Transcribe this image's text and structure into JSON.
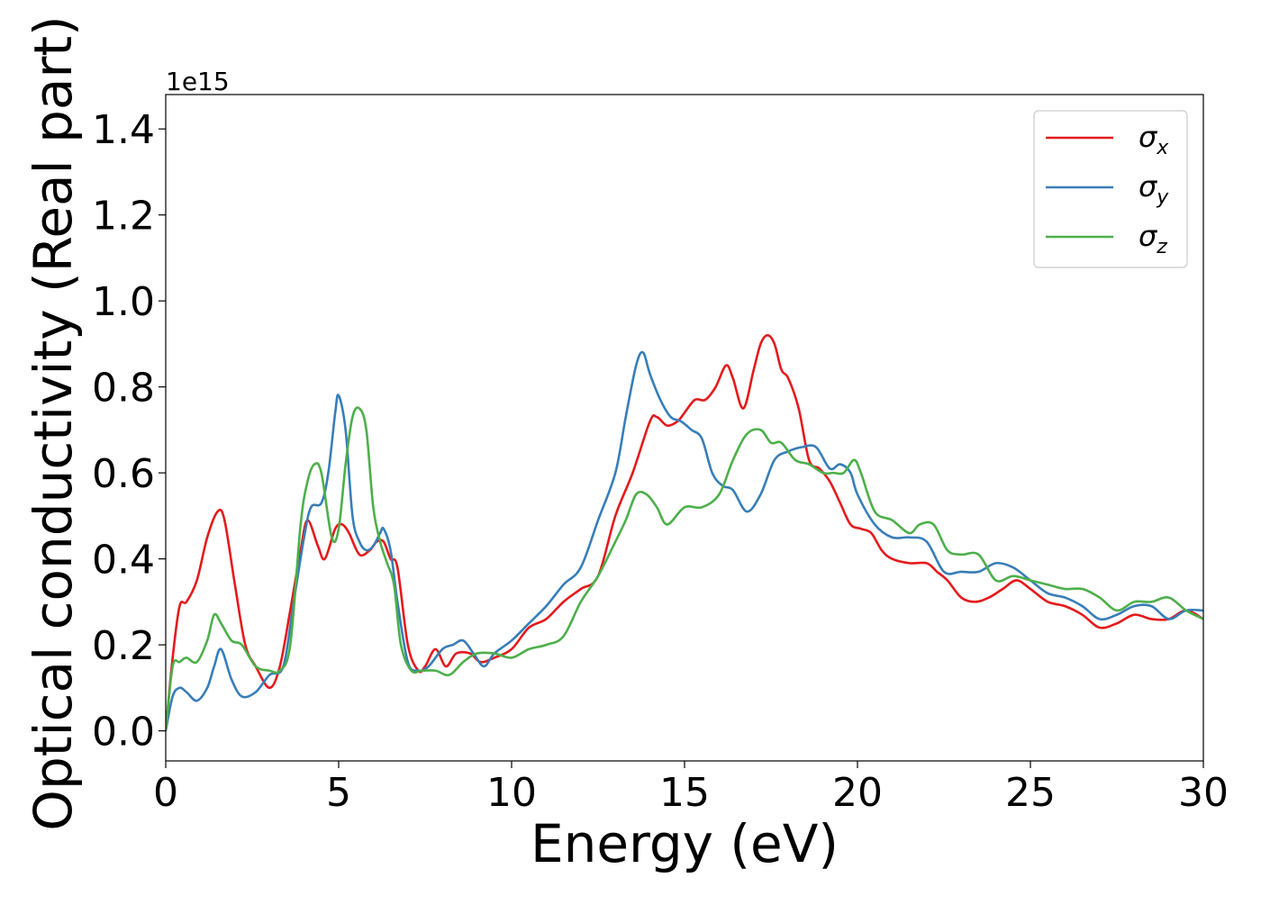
{
  "chart_data": {
    "type": "line",
    "title": "",
    "xlabel": "Energy (eV)",
    "ylabel": "Optical conductivity (Real part)",
    "y_offset_label": "1e15",
    "xlim": [
      0,
      30
    ],
    "ylim": [
      -0.07,
      1.48
    ],
    "xticks": [
      0,
      5,
      10,
      15,
      20,
      25,
      30
    ],
    "xtick_labels": [
      "0",
      "5",
      "10",
      "15",
      "20",
      "25",
      "30"
    ],
    "yticks": [
      0.0,
      0.2,
      0.4,
      0.6,
      0.8,
      1.0,
      1.2,
      1.4
    ],
    "ytick_labels": [
      "0.0",
      "0.2",
      "0.4",
      "0.6",
      "0.8",
      "1.0",
      "1.2",
      "1.4"
    ],
    "grid": false,
    "legend_position": "top-right",
    "series": [
      {
        "name": "σx",
        "legend_symbol": "σ",
        "legend_subscript": "x",
        "color": "#e41a1c",
        "x": [
          0,
          0.2,
          0.4,
          0.6,
          0.9,
          1.2,
          1.5,
          1.7,
          2.0,
          2.3,
          2.6,
          3.0,
          3.3,
          3.6,
          3.9,
          4.1,
          4.4,
          4.6,
          4.9,
          5.1,
          5.3,
          5.6,
          5.9,
          6.1,
          6.3,
          6.5,
          6.7,
          7.0,
          7.3,
          7.5,
          7.8,
          8.1,
          8.4,
          8.8,
          9.1,
          9.5,
          10.0,
          10.5,
          11.0,
          11.5,
          12.0,
          12.5,
          13.0,
          13.5,
          14.0,
          14.2,
          14.5,
          14.8,
          15.0,
          15.3,
          15.6,
          15.9,
          16.2,
          16.4,
          16.7,
          17.0,
          17.2,
          17.4,
          17.6,
          17.8,
          18.0,
          18.3,
          18.6,
          18.9,
          19.2,
          19.5,
          19.8,
          20.1,
          20.4,
          20.7,
          21.0,
          21.5,
          22.0,
          22.3,
          22.6,
          23.0,
          23.4,
          23.8,
          24.2,
          24.6,
          25.0,
          25.5,
          26.0,
          26.5,
          27.0,
          27.5,
          28.0,
          28.5,
          29.0,
          29.5,
          30.0
        ],
        "values": [
          0.0,
          0.17,
          0.29,
          0.3,
          0.35,
          0.45,
          0.51,
          0.49,
          0.34,
          0.2,
          0.15,
          0.1,
          0.15,
          0.28,
          0.42,
          0.49,
          0.43,
          0.4,
          0.47,
          0.48,
          0.46,
          0.41,
          0.42,
          0.44,
          0.44,
          0.4,
          0.38,
          0.2,
          0.14,
          0.15,
          0.19,
          0.15,
          0.18,
          0.18,
          0.16,
          0.17,
          0.19,
          0.24,
          0.26,
          0.3,
          0.33,
          0.36,
          0.5,
          0.6,
          0.72,
          0.73,
          0.71,
          0.72,
          0.74,
          0.77,
          0.77,
          0.8,
          0.85,
          0.82,
          0.75,
          0.84,
          0.9,
          0.92,
          0.9,
          0.84,
          0.82,
          0.75,
          0.63,
          0.61,
          0.58,
          0.53,
          0.48,
          0.47,
          0.46,
          0.42,
          0.4,
          0.39,
          0.39,
          0.37,
          0.35,
          0.31,
          0.3,
          0.31,
          0.33,
          0.35,
          0.33,
          0.3,
          0.29,
          0.27,
          0.24,
          0.25,
          0.27,
          0.26,
          0.26,
          0.28,
          0.26
        ]
      },
      {
        "name": "σy",
        "legend_symbol": "σ",
        "legend_subscript": "y",
        "color": "#377eb8",
        "x": [
          0,
          0.2,
          0.4,
          0.6,
          0.9,
          1.2,
          1.4,
          1.6,
          1.9,
          2.2,
          2.6,
          3.0,
          3.4,
          3.7,
          4.0,
          4.2,
          4.5,
          4.7,
          4.9,
          5.0,
          5.2,
          5.4,
          5.6,
          5.8,
          6.0,
          6.2,
          6.3,
          6.5,
          6.7,
          7.0,
          7.3,
          7.6,
          8.0,
          8.3,
          8.6,
          8.9,
          9.2,
          9.5,
          10.0,
          10.5,
          11.0,
          11.5,
          12.0,
          12.5,
          13.0,
          13.3,
          13.6,
          13.8,
          14.0,
          14.3,
          14.6,
          14.9,
          15.2,
          15.5,
          15.8,
          16.1,
          16.4,
          16.8,
          17.2,
          17.6,
          18.0,
          18.4,
          18.8,
          19.2,
          19.5,
          19.8,
          20.0,
          20.5,
          21.0,
          21.5,
          22.0,
          22.5,
          23.0,
          23.5,
          24.0,
          24.5,
          25.0,
          25.5,
          26.0,
          26.5,
          27.0,
          27.5,
          28.0,
          28.5,
          29.0,
          29.5,
          30.0
        ],
        "values": [
          0.0,
          0.08,
          0.1,
          0.09,
          0.07,
          0.1,
          0.15,
          0.19,
          0.12,
          0.08,
          0.09,
          0.13,
          0.15,
          0.3,
          0.45,
          0.52,
          0.53,
          0.6,
          0.74,
          0.78,
          0.7,
          0.5,
          0.44,
          0.42,
          0.43,
          0.46,
          0.47,
          0.42,
          0.3,
          0.16,
          0.14,
          0.15,
          0.19,
          0.2,
          0.21,
          0.18,
          0.15,
          0.18,
          0.21,
          0.25,
          0.29,
          0.34,
          0.38,
          0.49,
          0.6,
          0.73,
          0.85,
          0.88,
          0.83,
          0.77,
          0.73,
          0.72,
          0.7,
          0.68,
          0.6,
          0.57,
          0.56,
          0.51,
          0.55,
          0.63,
          0.65,
          0.66,
          0.66,
          0.61,
          0.62,
          0.6,
          0.55,
          0.48,
          0.45,
          0.45,
          0.44,
          0.37,
          0.37,
          0.37,
          0.39,
          0.38,
          0.35,
          0.32,
          0.31,
          0.29,
          0.26,
          0.27,
          0.29,
          0.29,
          0.26,
          0.28,
          0.28
        ]
      },
      {
        "name": "σz",
        "legend_symbol": "σ",
        "legend_subscript": "z",
        "color": "#4daf4a",
        "x": [
          0,
          0.2,
          0.4,
          0.6,
          0.9,
          1.2,
          1.4,
          1.6,
          1.9,
          2.2,
          2.6,
          3.0,
          3.3,
          3.6,
          3.9,
          4.1,
          4.3,
          4.5,
          4.8,
          5.0,
          5.2,
          5.4,
          5.6,
          5.8,
          6.0,
          6.2,
          6.4,
          6.6,
          6.8,
          7.1,
          7.4,
          7.8,
          8.2,
          8.6,
          9.0,
          9.5,
          10.0,
          10.5,
          11.0,
          11.5,
          12.0,
          12.5,
          13.0,
          13.3,
          13.6,
          13.9,
          14.2,
          14.5,
          15.0,
          15.5,
          16.0,
          16.4,
          16.8,
          17.2,
          17.5,
          17.8,
          18.2,
          18.6,
          19.0,
          19.3,
          19.6,
          19.9,
          20.1,
          20.5,
          21.0,
          21.5,
          21.8,
          22.2,
          22.6,
          23.0,
          23.5,
          24.0,
          24.5,
          25.0,
          25.5,
          26.0,
          26.5,
          27.0,
          27.5,
          28.0,
          28.5,
          29.0,
          29.5,
          30.0
        ],
        "values": [
          0.0,
          0.15,
          0.16,
          0.17,
          0.16,
          0.21,
          0.27,
          0.25,
          0.21,
          0.2,
          0.15,
          0.14,
          0.14,
          0.2,
          0.48,
          0.58,
          0.62,
          0.6,
          0.45,
          0.47,
          0.62,
          0.73,
          0.75,
          0.7,
          0.52,
          0.44,
          0.39,
          0.34,
          0.2,
          0.14,
          0.14,
          0.14,
          0.13,
          0.16,
          0.18,
          0.18,
          0.17,
          0.19,
          0.2,
          0.22,
          0.3,
          0.36,
          0.44,
          0.49,
          0.55,
          0.55,
          0.52,
          0.48,
          0.52,
          0.52,
          0.55,
          0.63,
          0.69,
          0.7,
          0.67,
          0.67,
          0.63,
          0.62,
          0.6,
          0.6,
          0.6,
          0.63,
          0.6,
          0.51,
          0.49,
          0.46,
          0.48,
          0.48,
          0.42,
          0.41,
          0.41,
          0.35,
          0.36,
          0.35,
          0.34,
          0.33,
          0.33,
          0.31,
          0.28,
          0.3,
          0.3,
          0.31,
          0.28,
          0.26
        ]
      }
    ]
  }
}
